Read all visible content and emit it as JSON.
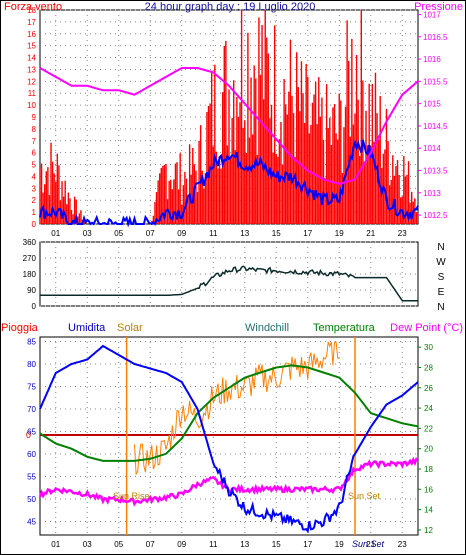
{
  "chart_data": [
    {
      "type": "line",
      "title": "24 hour graph day : 19 Luglio 2020",
      "left_label": "Forza vento",
      "right_label": "Pressione",
      "x_ticks": [
        "01",
        "03",
        "05",
        "07",
        "09",
        "11",
        "13",
        "15",
        "17",
        "19",
        "21",
        "23"
      ],
      "left_ticks": [
        "0",
        "1",
        "2",
        "3",
        "4",
        "5",
        "6",
        "7",
        "8",
        "9",
        "10",
        "11",
        "12",
        "13",
        "14",
        "15",
        "16",
        "17",
        "18"
      ],
      "right_ticks": [
        "1012.5",
        "1013",
        "1013.5",
        "1014",
        "1014.5",
        "1015",
        "1015.5",
        "1016",
        "1016.5",
        "1017"
      ],
      "ylim_left": [
        0,
        18
      ],
      "ylim_right": [
        1012.3,
        1017.1
      ],
      "series": [
        {
          "name": "Forza vento",
          "color": "#ff0000",
          "style": "bar",
          "x": [
            0,
            1,
            2,
            3,
            4,
            5,
            6,
            7,
            8,
            9,
            10,
            11,
            12,
            13,
            14,
            15,
            16,
            17,
            18,
            19,
            20,
            21,
            22,
            23,
            24
          ],
          "values": [
            5,
            5,
            2,
            0,
            0,
            0,
            0,
            0,
            5,
            4,
            5,
            10,
            12,
            15,
            14,
            12,
            11,
            9,
            8,
            8,
            15,
            10,
            7,
            5,
            2
          ]
        },
        {
          "name": "",
          "color": "#0000ff",
          "style": "line",
          "x": [
            0,
            1,
            2,
            3,
            4,
            5,
            6,
            7,
            8,
            9,
            10,
            11,
            12,
            13,
            14,
            15,
            16,
            17,
            18,
            19,
            20,
            21,
            22,
            23,
            24
          ],
          "values": [
            1,
            1,
            0,
            0,
            0,
            0,
            0,
            0,
            1,
            1,
            3,
            5,
            6,
            5,
            5,
            4,
            4,
            3,
            2,
            2,
            7,
            6,
            2,
            1,
            1
          ]
        },
        {
          "name": "Pressione",
          "color": "#ff00ff",
          "style": "line",
          "axis": "right",
          "x": [
            0,
            1,
            2,
            3,
            4,
            5,
            6,
            7,
            8,
            9,
            10,
            11,
            12,
            13,
            14,
            15,
            16,
            17,
            18,
            19,
            20,
            21,
            22,
            23,
            24
          ],
          "values": [
            1015.8,
            1015.6,
            1015.4,
            1015.4,
            1015.3,
            1015.3,
            1015.2,
            1015.4,
            1015.6,
            1015.8,
            1015.8,
            1015.7,
            1015.4,
            1015.0,
            1014.6,
            1014.2,
            1013.8,
            1013.5,
            1013.3,
            1013.2,
            1013.3,
            1013.9,
            1014.6,
            1015.2,
            1015.5
          ]
        }
      ]
    },
    {
      "type": "line",
      "y_ticks": [
        "0",
        "90",
        "180",
        "270",
        "360"
      ],
      "compass": [
        "N",
        "W",
        "S",
        "E",
        "N"
      ],
      "ylim": [
        0,
        360
      ],
      "series": [
        {
          "name": "",
          "color": "#0b2b2b",
          "x": [
            0,
            1,
            2,
            3,
            4,
            5,
            6,
            7,
            8,
            9,
            10,
            11,
            12,
            13,
            14,
            15,
            16,
            17,
            18,
            19,
            20,
            21,
            22,
            23,
            24
          ],
          "values": [
            60,
            60,
            60,
            60,
            60,
            60,
            60,
            60,
            60,
            65,
            100,
            160,
            200,
            210,
            200,
            200,
            195,
            190,
            185,
            180,
            160,
            160,
            160,
            30,
            30
          ]
        }
      ]
    },
    {
      "type": "line",
      "labels": [
        "Pioggia",
        "Umidita",
        "Solar",
        "Windchill",
        "Temperatura",
        "Dew Point (°C)"
      ],
      "left_ticks": [
        "45",
        "50",
        "55",
        "60",
        "65",
        "70",
        "75",
        "80",
        "85"
      ],
      "right_ticks": [
        "12",
        "14",
        "16",
        "18",
        "20",
        "22",
        "24",
        "26",
        "28",
        "30"
      ],
      "x_ticks": [
        "01",
        "03",
        "05",
        "07",
        "09",
        "11",
        "13",
        "15",
        "17",
        "19",
        "21",
        "23"
      ],
      "annotations": [
        "Sun Rise",
        "Sun Set",
        "Sun Set",
        "0"
      ],
      "ylim_left": [
        42,
        86
      ],
      "ylim_right": [
        11.5,
        31
      ],
      "series": [
        {
          "name": "Umidita",
          "color": "#0000ff",
          "axis": "left",
          "x": [
            0,
            1,
            2,
            3,
            4,
            5,
            6,
            7,
            8,
            9,
            10,
            11,
            12,
            13,
            14,
            15,
            16,
            17,
            18,
            19,
            20,
            21,
            22,
            23,
            24
          ],
          "values": [
            70,
            78,
            80,
            81,
            84,
            82,
            80,
            79,
            78,
            76,
            70,
            58,
            52,
            48,
            47,
            46,
            45,
            44,
            45,
            48,
            60,
            66,
            71,
            73,
            76
          ]
        },
        {
          "name": "Temperatura",
          "color": "#008000",
          "axis": "right",
          "x": [
            0,
            1,
            2,
            3,
            4,
            5,
            6,
            7,
            8,
            9,
            10,
            11,
            12,
            13,
            14,
            15,
            16,
            17,
            18,
            19,
            20,
            21,
            22,
            23,
            24
          ],
          "values": [
            21.5,
            20.5,
            20.0,
            19.2,
            18.8,
            18.8,
            18.8,
            19.0,
            19.5,
            21.0,
            23.5,
            25.0,
            26.0,
            27.0,
            27.5,
            28.0,
            28.2,
            28.0,
            27.5,
            27.0,
            25.5,
            23.5,
            23.0,
            22.5,
            22.2
          ]
        },
        {
          "name": "Dew Point (°C)",
          "color": "#ff00ff",
          "axis": "right",
          "x": [
            0,
            1,
            2,
            3,
            4,
            5,
            6,
            7,
            8,
            9,
            10,
            11,
            12,
            13,
            14,
            15,
            16,
            17,
            18,
            19,
            20,
            21,
            22,
            23,
            24
          ],
          "values": [
            15.5,
            16.0,
            15.8,
            15.5,
            15.0,
            15.0,
            14.8,
            15.0,
            15.2,
            15.5,
            16.5,
            17.0,
            16.0,
            16.0,
            16.0,
            16.0,
            16.0,
            16.0,
            16.0,
            16.0,
            18.0,
            18.5,
            18.5,
            18.5,
            18.8
          ]
        },
        {
          "name": "Solar",
          "color": "#ff8000",
          "axis": "right",
          "x": [
            0,
            1,
            2,
            3,
            4,
            5,
            6,
            7,
            8,
            9,
            10,
            11,
            12,
            13,
            14,
            15,
            16,
            17,
            18,
            19,
            20,
            21,
            22,
            23,
            24
          ],
          "values": [
            null,
            null,
            null,
            null,
            null,
            null,
            19,
            19,
            20,
            24,
            23,
            25,
            26,
            26,
            27,
            27,
            28,
            28,
            29,
            30,
            null,
            null,
            null,
            null,
            null
          ],
          "marker_x": [
            5.5,
            20.0
          ]
        },
        {
          "name": "Pioggia",
          "color": "#c00000",
          "axis": "left",
          "style": "hline",
          "value": 0
        }
      ]
    }
  ]
}
